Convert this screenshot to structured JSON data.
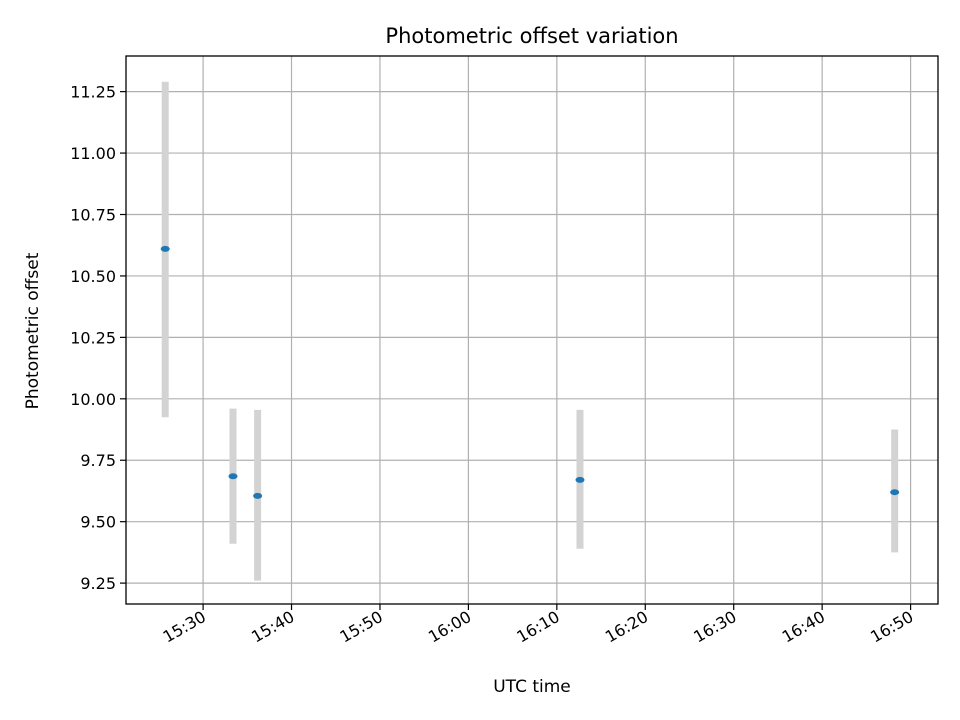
{
  "chart_data": {
    "type": "scatter",
    "title": "Photometric offset variation",
    "xlabel": "UTC time",
    "ylabel": "Photometric offset",
    "x_ticks": [
      "15:30",
      "15:40",
      "15:50",
      "16:00",
      "16:10",
      "16:20",
      "16:30",
      "16:40",
      "16:50"
    ],
    "y_ticks": [
      "9.25",
      "9.50",
      "9.75",
      "10.00",
      "10.25",
      "10.50",
      "10.75",
      "11.00",
      "11.25"
    ],
    "xlim": [
      "15:21:17",
      "16:53:06"
    ],
    "ylim": [
      9.165,
      11.395
    ],
    "grid": true,
    "points": [
      {
        "x": "15:25:43",
        "y": 10.61,
        "err_low": 9.925,
        "err_high": 11.29
      },
      {
        "x": "15:33:23",
        "y": 9.685,
        "err_low": 9.41,
        "err_high": 9.96
      },
      {
        "x": "15:36:10",
        "y": 9.605,
        "err_low": 9.26,
        "err_high": 9.955
      },
      {
        "x": "16:12:37",
        "y": 9.67,
        "err_low": 9.39,
        "err_high": 9.955
      },
      {
        "x": "16:48:12",
        "y": 9.62,
        "err_low": 9.375,
        "err_high": 9.875
      }
    ],
    "marker_color": "#1f77b4",
    "errorbar_color": "#d3d3d3"
  }
}
